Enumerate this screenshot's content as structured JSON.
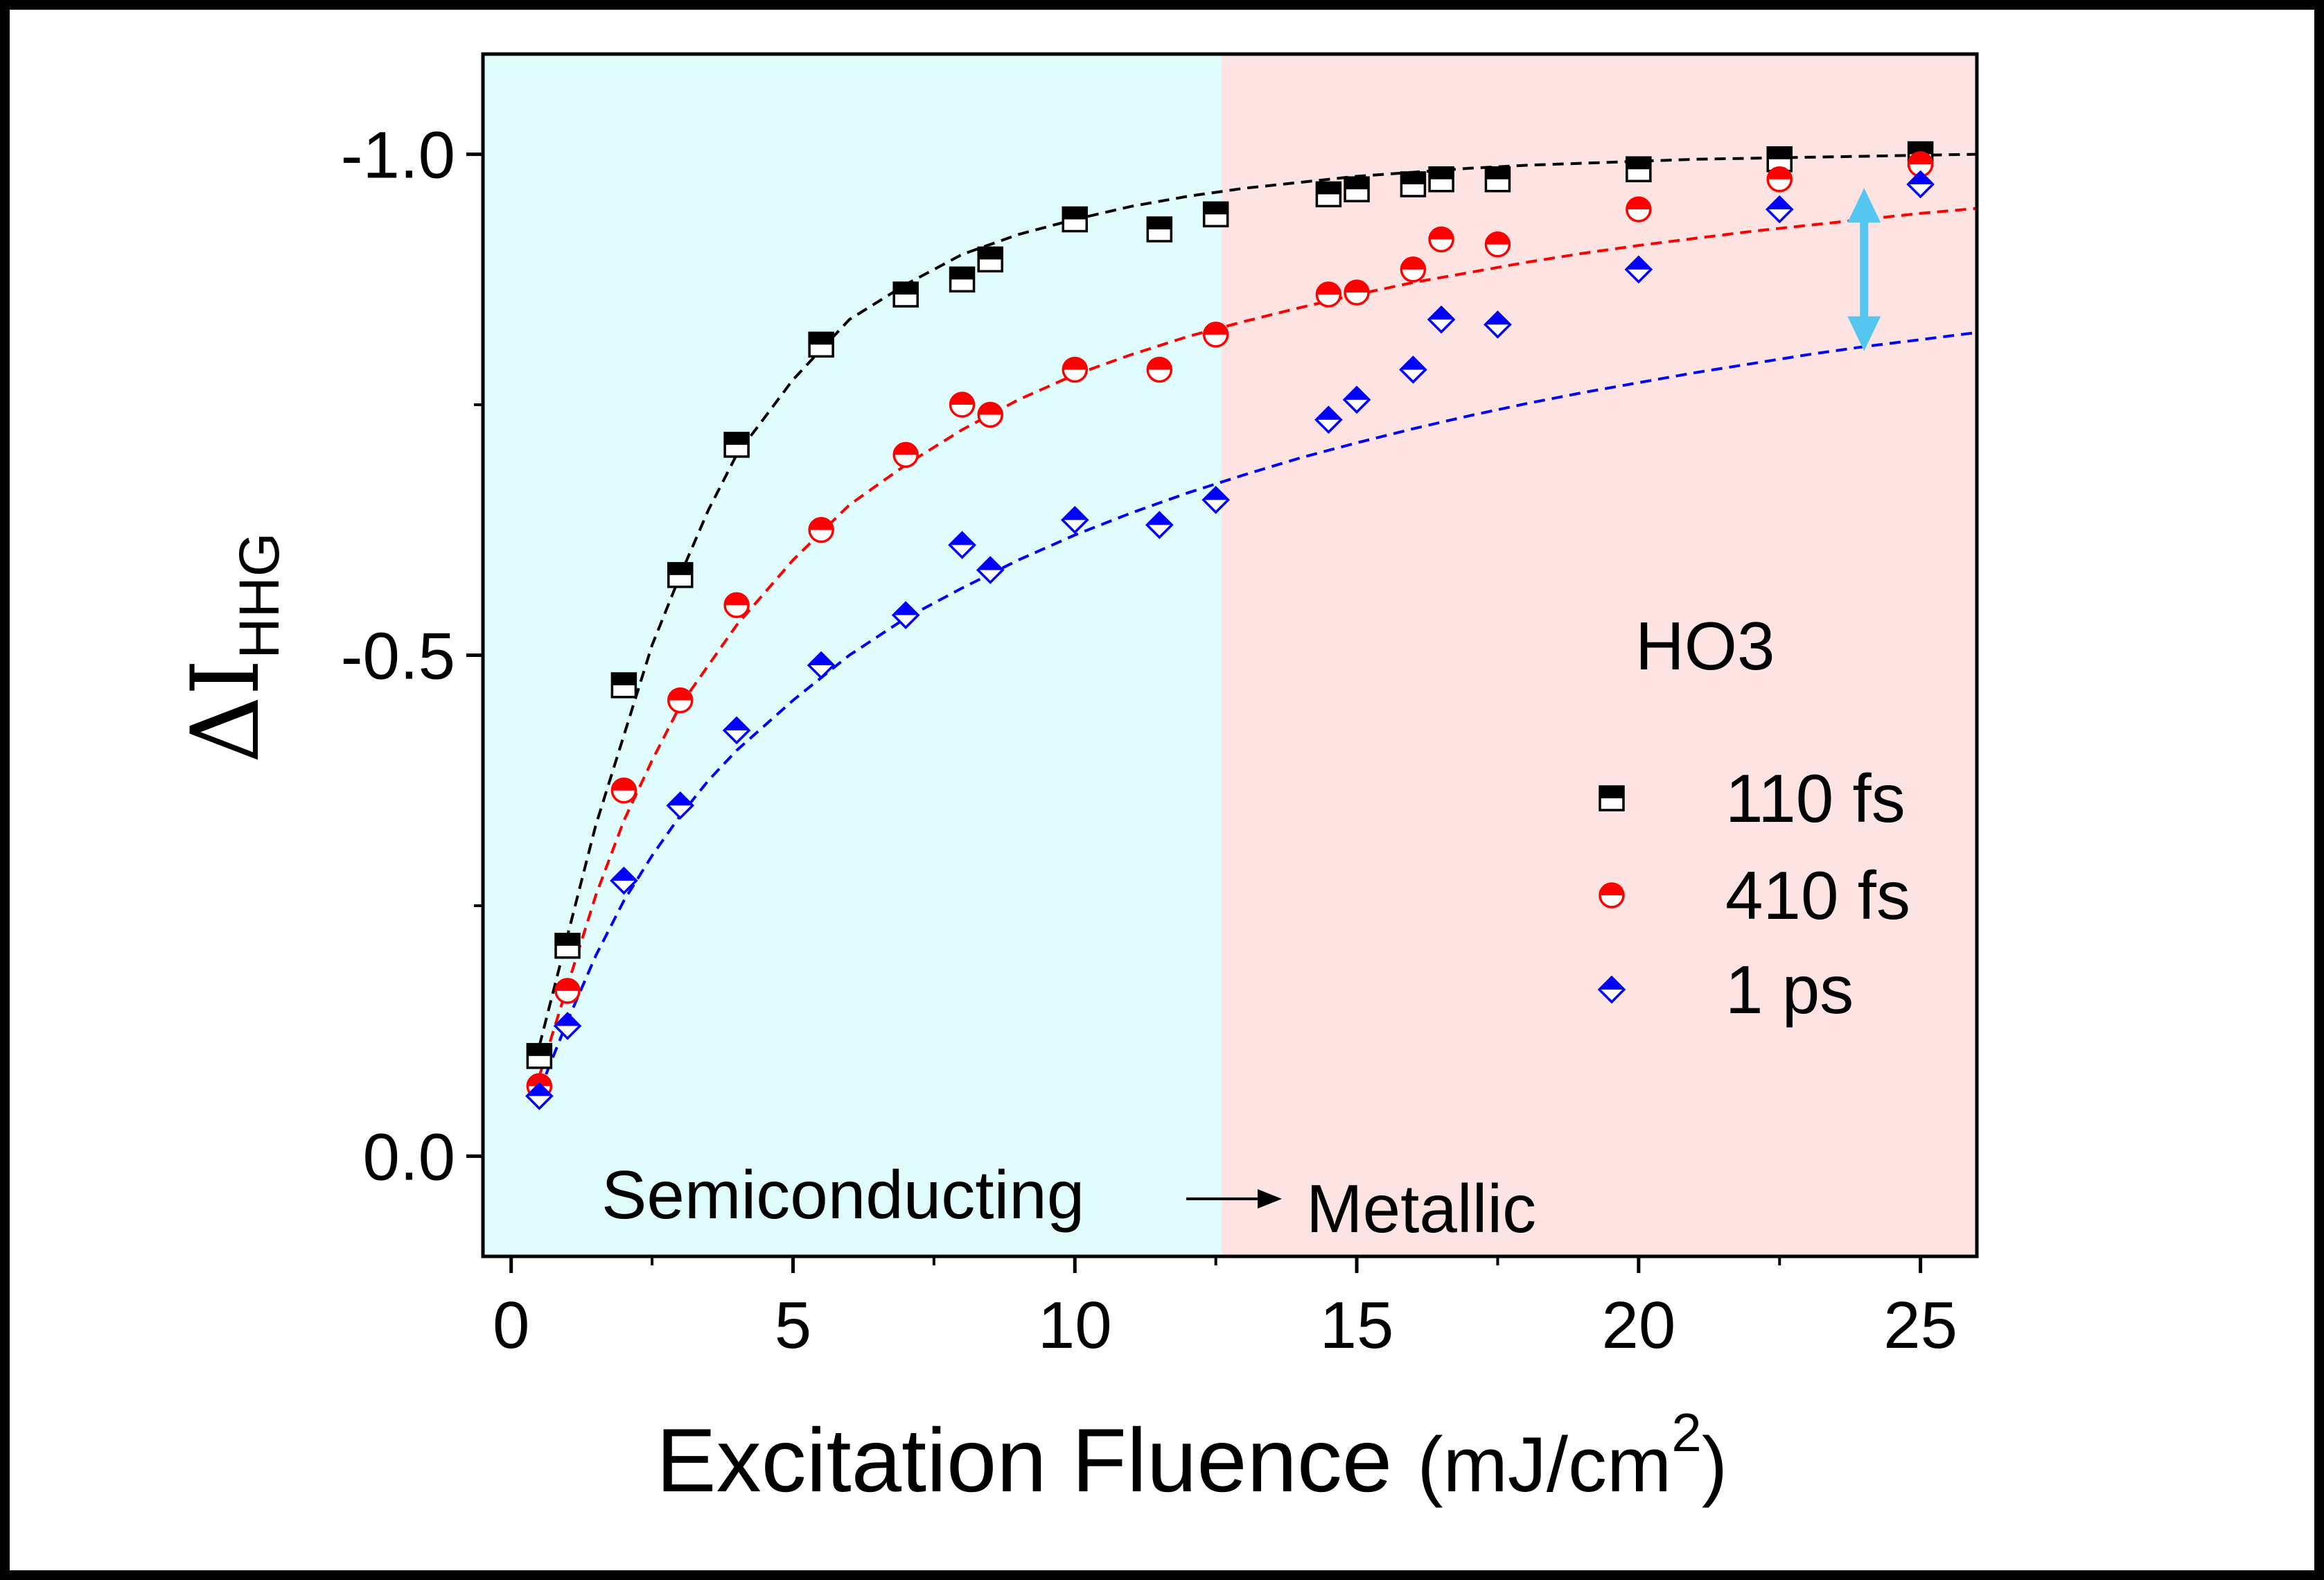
{
  "chart_data": {
    "type": "scatter",
    "title": "",
    "xlabel_main": "Excitation Fluence ",
    "xlabel_unit": "(mJ/cm",
    "xlabel_sup": "2",
    "xlabel_close": ")",
    "ylabel_symbol": "ΔI",
    "ylabel_sub": "HHG",
    "xlim": [
      -0.5,
      26
    ],
    "ylim": [
      0.1,
      -1.1
    ],
    "x_ticks": [
      "0",
      "5",
      "10",
      "15",
      "20",
      "25"
    ],
    "x_tick_values": [
      0,
      5,
      10,
      15,
      20,
      25
    ],
    "y_ticks": [
      "0.0",
      "-0.5",
      "-1.0"
    ],
    "y_tick_values": [
      0.0,
      -0.5,
      -1.0
    ],
    "grid": false,
    "legend_position": "right",
    "legend_title": "HO3",
    "regions": [
      {
        "label": "Semiconducting",
        "x_from": -0.5,
        "x_to": 12.6,
        "color": "#e0fcfc"
      },
      {
        "label": "Metallic",
        "x_from": 12.6,
        "x_to": 26,
        "color": "#fde4e3"
      }
    ],
    "double_arrow": {
      "x": 24.0,
      "y_from": -0.965,
      "y_to": -0.805,
      "color": "#55c6f0"
    },
    "series": [
      {
        "name": "110 fs",
        "marker": "square-half",
        "color": "#000000",
        "x": [
          0.5,
          1,
          2,
          3,
          4,
          5.5,
          7,
          8,
          8.5,
          10,
          11.5,
          12.5,
          14.5,
          15,
          16,
          16.5,
          17.5,
          20,
          22.5,
          25
        ],
        "y": [
          -0.1,
          -0.21,
          -0.47,
          -0.58,
          -0.71,
          -0.81,
          -0.86,
          -0.875,
          -0.895,
          -0.935,
          -0.925,
          -0.94,
          -0.96,
          -0.965,
          -0.97,
          -0.975,
          -0.975,
          -0.985,
          -0.995,
          -1.0
        ],
        "fit": {
          "x": [
            0.5,
            1,
            1.5,
            2,
            2.5,
            3,
            3.5,
            4,
            5,
            6,
            7,
            8,
            9,
            10,
            11,
            12,
            13,
            14,
            15,
            16,
            17,
            18,
            19,
            20,
            21,
            22,
            23,
            24,
            25,
            26
          ],
          "y": [
            -0.11,
            -0.22,
            -0.33,
            -0.42,
            -0.51,
            -0.58,
            -0.645,
            -0.7,
            -0.775,
            -0.835,
            -0.87,
            -0.9,
            -0.92,
            -0.935,
            -0.948,
            -0.958,
            -0.966,
            -0.972,
            -0.978,
            -0.982,
            -0.986,
            -0.989,
            -0.991,
            -0.993,
            -0.995,
            -0.996,
            -0.997,
            -0.998,
            -0.999,
            -1.0
          ]
        }
      },
      {
        "name": "410 fs",
        "marker": "circle-half",
        "color": "#ff0000",
        "x": [
          0.5,
          1,
          2,
          3,
          4,
          5.5,
          7,
          8,
          8.5,
          10,
          11.5,
          12.5,
          14.5,
          15,
          16,
          16.5,
          17.5,
          20,
          22.5,
          25
        ],
        "y": [
          -0.07,
          -0.165,
          -0.365,
          -0.455,
          -0.55,
          -0.625,
          -0.7,
          -0.75,
          -0.74,
          -0.785,
          -0.785,
          -0.82,
          -0.86,
          -0.862,
          -0.885,
          -0.915,
          -0.91,
          -0.945,
          -0.975,
          -0.99
        ],
        "fit": {
          "x": [
            0.5,
            1,
            1.5,
            2,
            2.5,
            3,
            3.5,
            4,
            5,
            6,
            7,
            8,
            9,
            10,
            11,
            12,
            13,
            14,
            15,
            16,
            17,
            18,
            19,
            20,
            21,
            22,
            23,
            24,
            25,
            26
          ],
          "y": [
            -0.08,
            -0.17,
            -0.26,
            -0.335,
            -0.395,
            -0.45,
            -0.49,
            -0.53,
            -0.595,
            -0.65,
            -0.69,
            -0.725,
            -0.755,
            -0.78,
            -0.8,
            -0.818,
            -0.833,
            -0.847,
            -0.86,
            -0.872,
            -0.882,
            -0.892,
            -0.901,
            -0.909,
            -0.916,
            -0.923,
            -0.929,
            -0.935,
            -0.941,
            -0.946
          ]
        }
      },
      {
        "name": "1 ps",
        "marker": "diamond-half",
        "color": "#0000ff",
        "x": [
          0.5,
          1,
          2,
          3,
          4,
          5.5,
          7,
          8,
          8.5,
          10,
          11.5,
          12.5,
          14.5,
          15,
          16,
          16.5,
          17.5,
          20,
          22.5,
          25
        ],
        "y": [
          -0.06,
          -0.13,
          -0.275,
          -0.35,
          -0.425,
          -0.49,
          -0.54,
          -0.61,
          -0.585,
          -0.635,
          -0.63,
          -0.655,
          -0.735,
          -0.755,
          -0.785,
          -0.835,
          -0.83,
          -0.885,
          -0.945,
          -0.97
        ],
        "fit": {
          "x": [
            0.5,
            1,
            1.5,
            2,
            2.5,
            3,
            3.5,
            4,
            5,
            6,
            7,
            8,
            9,
            10,
            11,
            12,
            13,
            14,
            15,
            16,
            17,
            18,
            19,
            20,
            21,
            22,
            23,
            24,
            25,
            26
          ],
          "y": [
            -0.065,
            -0.135,
            -0.2,
            -0.255,
            -0.3,
            -0.34,
            -0.375,
            -0.405,
            -0.455,
            -0.5,
            -0.537,
            -0.567,
            -0.595,
            -0.62,
            -0.642,
            -0.662,
            -0.68,
            -0.697,
            -0.712,
            -0.726,
            -0.739,
            -0.751,
            -0.762,
            -0.772,
            -0.782,
            -0.791,
            -0.8,
            -0.808,
            -0.815,
            -0.822
          ]
        }
      }
    ]
  }
}
